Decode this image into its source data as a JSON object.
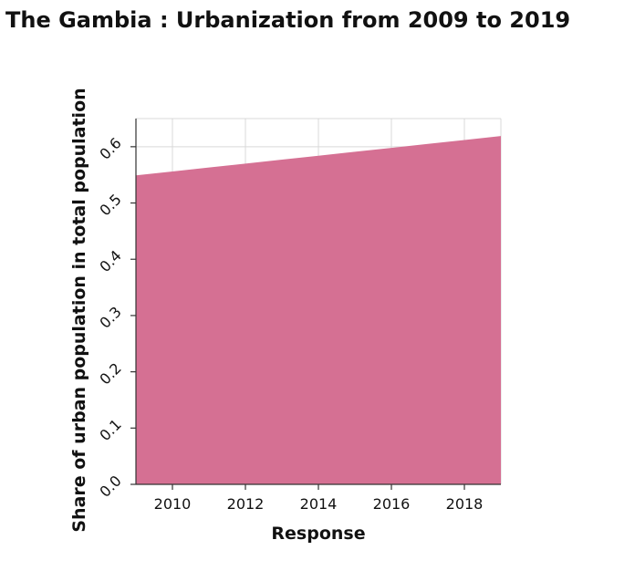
{
  "chart_data": {
    "type": "area",
    "title": "The Gambia : Urbanization from 2009 to 2019",
    "xlabel": "Response",
    "ylabel": "Share of urban population in total population",
    "x": [
      2009,
      2010,
      2011,
      2012,
      2013,
      2014,
      2015,
      2016,
      2017,
      2018,
      2019
    ],
    "series": [
      {
        "values": [
          0.549,
          0.556,
          0.563,
          0.57,
          0.577,
          0.584,
          0.591,
          0.598,
          0.605,
          0.612,
          0.619
        ],
        "color": "#d57093"
      }
    ],
    "xlim": [
      2009,
      2019
    ],
    "ylim": [
      0,
      0.65
    ],
    "x_ticks": [
      "2010",
      "2012",
      "2014",
      "2016",
      "2018"
    ],
    "y_ticks": [
      "0.0",
      "0.1",
      "0.2",
      "0.3",
      "0.4",
      "0.5",
      "0.6"
    ],
    "grid": true,
    "grid_color": "#d9d9d9"
  }
}
